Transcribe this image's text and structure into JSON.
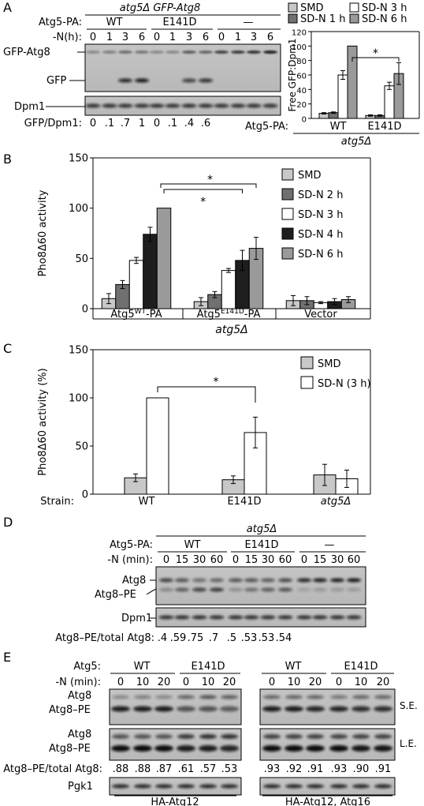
{
  "panels": {
    "A": {
      "letter": "A",
      "strain_title": "atg5Δ GFP-Atg8",
      "row_label_atg5": "Atg5-PA:",
      "row_label_n": "-N(h):",
      "groups": [
        "WT",
        "E141D",
        "—"
      ],
      "timepoints": [
        "0",
        "1",
        "3",
        "6"
      ],
      "band_labels": [
        "GFP-Atg8",
        "GFP",
        "Dpm1"
      ],
      "ratio_label": "GFP/Dpm1:",
      "ratios": [
        "0",
        ".1",
        ".7",
        "1",
        "0",
        ".1",
        ".4",
        ".6"
      ]
    },
    "A_chart": {
      "legend": [
        "SMD",
        "SD-N 3 h",
        "SD-N 1 h",
        "SD-N 6 h"
      ],
      "x_row_label": "Atg5-PA:",
      "x_groups": [
        "WT",
        "E141D"
      ],
      "x_strain": "atg5Δ",
      "significance": "*"
    },
    "B": {
      "letter": "B",
      "significance": [
        "*",
        "*"
      ]
    },
    "C": {
      "letter": "C",
      "strain_row_label": "Strain:",
      "significance": "*"
    },
    "D": {
      "letter": "D",
      "strain_title": "atg5Δ",
      "row_label_atg5": "Atg5-PA:",
      "row_label_n": "-N (min):",
      "groups": [
        "WT",
        "E141D",
        "—"
      ],
      "timepoints": [
        "0",
        "15",
        "30",
        "60"
      ],
      "band_labels": [
        "Atg8",
        "Atg8–PE",
        "Dpm1"
      ],
      "ratio_label": "Atg8–PE/total Atg8:",
      "ratios": [
        ".4",
        ".59",
        ".75",
        ".7",
        ".5",
        ".53",
        ".53",
        ".54"
      ]
    },
    "E": {
      "letter": "E",
      "row_label_atg5": "Atg5:",
      "row_label_n": "-N (min):",
      "groups": [
        "WT",
        "E141D",
        "WT",
        "E141D"
      ],
      "timepoints": [
        "0",
        "10",
        "20"
      ],
      "band_labels": [
        "Atg8",
        "Atg8–PE",
        "Atg8",
        "Atg8–PE",
        "Pgk1"
      ],
      "exposure_labels": [
        "S.E.",
        "L.E."
      ],
      "ratio_label": "Atg8–PE/total Atg8:",
      "ratios_left": [
        ".88",
        ".88",
        ".87",
        ".61",
        ".57",
        ".53"
      ],
      "ratios_right": [
        ".93",
        ".92",
        ".91",
        ".93",
        ".90",
        ".91"
      ],
      "bottom_labels": [
        "HA-Atg12",
        "HA-Atg12, Atg16"
      ]
    }
  },
  "chart_data": [
    {
      "id": "A-right",
      "type": "bar",
      "ylabel": "Free GFP:Dpm1",
      "ylim": [
        0,
        120
      ],
      "yticks": [
        "0",
        "20",
        "40",
        "60",
        "80",
        "100",
        "120"
      ],
      "categories": [
        "WT",
        "E141D"
      ],
      "series": [
        {
          "name": "SMD",
          "values": [
            7,
            4
          ],
          "errors": [
            1,
            1
          ],
          "color": "#c8c8c8"
        },
        {
          "name": "SD-N 1 h",
          "values": [
            8,
            4
          ],
          "errors": [
            1,
            1
          ],
          "color": "#707070"
        },
        {
          "name": "SD-N 3 h",
          "values": [
            60,
            45
          ],
          "errors": [
            6,
            5
          ],
          "color": "#ffffff"
        },
        {
          "name": "SD-N 6 h",
          "values": [
            100,
            62
          ],
          "errors": [
            0,
            15
          ],
          "color": "#9a9a9a"
        }
      ]
    },
    {
      "id": "B",
      "type": "bar",
      "ylabel": "Pho8Δ60 activity",
      "ylim": [
        0,
        150
      ],
      "yticks": [
        "0",
        "50",
        "100",
        "150"
      ],
      "categories": [
        "Atg5WT-PA",
        "Atg5E141D-PA",
        "Vector"
      ],
      "category_labels": [
        {
          "base": "Atg5",
          "sup": "WT",
          "suffix": "-PA"
        },
        {
          "base": "Atg5",
          "sup": "E141D",
          "suffix": "-PA"
        },
        {
          "base": "Vector",
          "sup": "",
          "suffix": ""
        }
      ],
      "x_strain": "atg5Δ",
      "series": [
        {
          "name": "SMD",
          "values": [
            10,
            7,
            8
          ],
          "errors": [
            5,
            4,
            5
          ],
          "color": "#c8c8c8"
        },
        {
          "name": "SD-N 2 h",
          "values": [
            24,
            14,
            8
          ],
          "errors": [
            4,
            3,
            4
          ],
          "color": "#707070"
        },
        {
          "name": "SD-N 3 h",
          "values": [
            48,
            38,
            6
          ],
          "errors": [
            3,
            2,
            1
          ],
          "color": "#ffffff"
        },
        {
          "name": "SD-N 4 h",
          "values": [
            74,
            48,
            7
          ],
          "errors": [
            7,
            10,
            3
          ],
          "color": "#1e1e1e"
        },
        {
          "name": "SD-N 6 h",
          "values": [
            100,
            60,
            9
          ],
          "errors": [
            0,
            11,
            3
          ],
          "color": "#9a9a9a"
        }
      ]
    },
    {
      "id": "C",
      "type": "bar",
      "ylabel": "Pho8Δ60 activity (%)",
      "ylim": [
        0,
        150
      ],
      "yticks": [
        "0",
        "50",
        "100",
        "150"
      ],
      "categories": [
        "WT",
        "E141D",
        "atg5Δ"
      ],
      "series": [
        {
          "name": "SMD",
          "values": [
            17,
            15,
            20
          ],
          "errors": [
            4,
            4,
            11
          ],
          "color": "#c8c8c8"
        },
        {
          "name": "SD-N (3 h)",
          "values": [
            100,
            64,
            16
          ],
          "errors": [
            0,
            16,
            9
          ],
          "color": "#ffffff"
        }
      ]
    }
  ]
}
